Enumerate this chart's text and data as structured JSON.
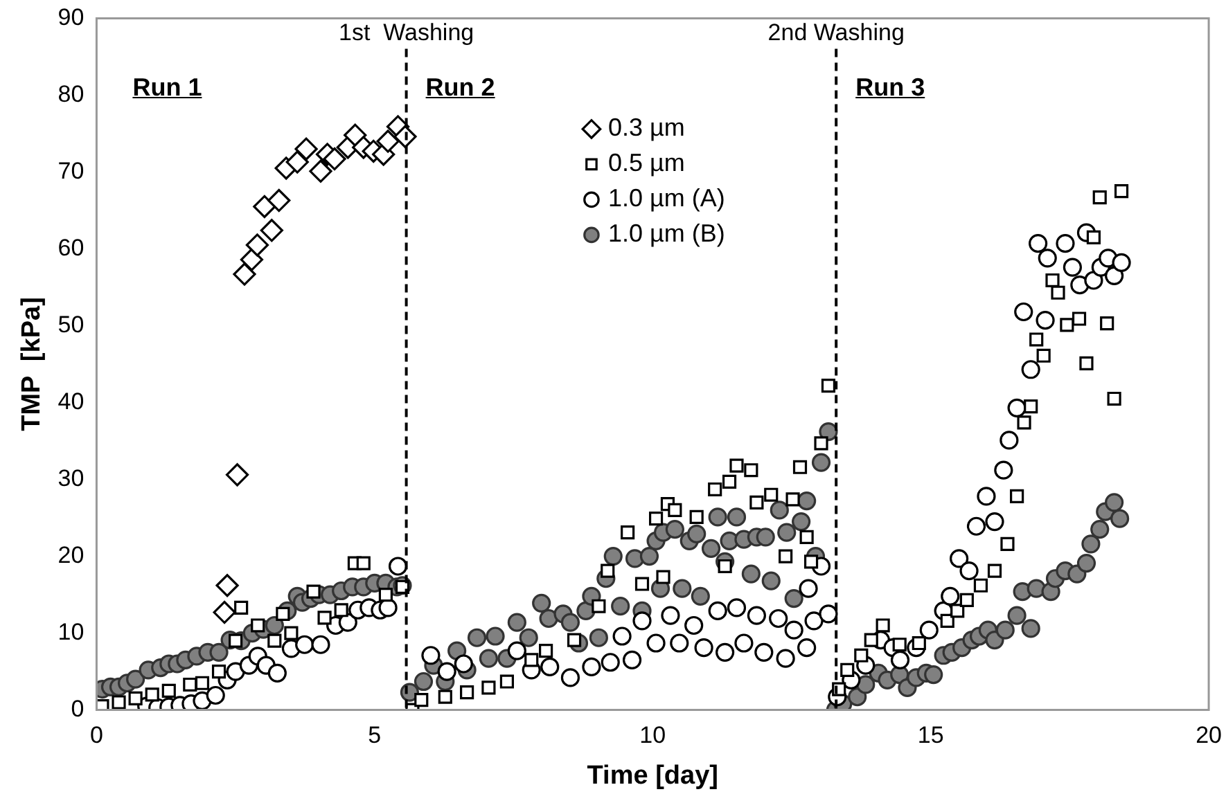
{
  "chart_data": {
    "type": "scatter",
    "xlabel": "Time [day]",
    "ylabel": "TMP  [kPa]",
    "xlim": [
      0,
      20
    ],
    "xticks": [
      0,
      5,
      10,
      15,
      20
    ],
    "ylim": [
      0,
      90
    ],
    "yticks": [
      0,
      10,
      20,
      30,
      40,
      50,
      60,
      70,
      80,
      90
    ],
    "grid": false,
    "legend": "top",
    "annotations": [
      "Run 1",
      "Run 2",
      "Run 3"
    ],
    "ref_lines": [
      {
        "axis": "x",
        "value": 5.57,
        "label": "1st  Washing",
        "line_style": "dashed",
        "color": "#000000"
      },
      {
        "axis": "x",
        "value": 13.3,
        "label": "2nd Washing",
        "line_style": "dashed",
        "color": "#000000"
      }
    ],
    "series": [
      {
        "name": "0.3 µm",
        "color": "#000000",
        "marker": "diamond",
        "x": [
          2.3,
          2.35,
          2.53,
          2.66,
          2.79,
          2.89,
          3.02,
          3.15,
          3.28,
          3.41,
          3.61,
          3.77,
          4.03,
          4.15,
          4.28,
          4.52,
          4.65,
          4.8,
          4.98,
          5.16,
          5.24,
          5.42,
          5.55
        ],
        "values": [
          12.7,
          16.2,
          30.6,
          56.7,
          58.6,
          60.5,
          65.5,
          62.4,
          66.3,
          70.5,
          71.3,
          73,
          70.1,
          72.3,
          71.7,
          73.2,
          74.8,
          73.2,
          72.7,
          72.3,
          74,
          75.9,
          74.6
        ]
      },
      {
        "name": "0.5 µm",
        "color": "#000000",
        "marker": "square",
        "x": [
          0.1,
          0.4,
          0.7,
          1,
          1.3,
          1.68,
          1.9,
          2.2,
          2.5,
          2.6,
          2.9,
          3.2,
          3.35,
          3.5,
          3.9,
          4.1,
          4.4,
          4.64,
          4.8,
          5.2,
          5.5,
          5.68,
          5.84,
          6.27,
          6.66,
          7.05,
          7.38,
          7.82,
          8.08,
          8.59,
          9.03,
          9.19,
          9.55,
          9.81,
          10.06,
          10.19,
          10.27,
          10.4,
          10.79,
          11.12,
          11.3,
          11.38,
          11.51,
          11.77,
          11.87,
          12.13,
          12.39,
          12.52,
          12.65,
          12.77,
          12.85,
          13.03,
          13.16,
          13.35,
          13.5,
          13.75,
          13.93,
          14.14,
          14.44,
          14.79,
          15.3,
          15.48,
          15.65,
          15.9,
          16.15,
          16.38,
          16.55,
          16.68,
          16.8,
          16.9,
          17.03,
          17.19,
          17.29,
          17.45,
          17.67,
          17.8,
          17.93,
          18.04,
          18.17,
          18.3,
          18.43
        ],
        "values": [
          0.5,
          1,
          1.5,
          2,
          2.5,
          3.3,
          3.5,
          5,
          9,
          13.3,
          11,
          9,
          12.5,
          10,
          15.4,
          12,
          13,
          19.1,
          19.1,
          15,
          16,
          0,
          1.3,
          1.7,
          2.3,
          2.9,
          3.7,
          6.5,
          7.7,
          9.1,
          13.5,
          18.1,
          23.1,
          16.4,
          24.9,
          17.3,
          26.8,
          26,
          25.1,
          28.7,
          18.7,
          29.7,
          31.8,
          31.2,
          27,
          28,
          20,
          27.4,
          31.6,
          22.5,
          19.3,
          34.7,
          42.2,
          2.7,
          5.2,
          7.1,
          9.1,
          11,
          8.5,
          8.7,
          11.6,
          12.9,
          14.3,
          16.2,
          18.1,
          21.6,
          27.8,
          37.4,
          39.5,
          48.2,
          46.1,
          55.9,
          54.3,
          50.1,
          50.9,
          45.1,
          61.5,
          66.7,
          50.3,
          40.5,
          67.5
        ]
      },
      {
        "name": "1.0 µm (A)",
        "color": "#000000",
        "marker": "circle",
        "x": [
          0.9,
          1.1,
          1.3,
          1.5,
          1.7,
          1.9,
          2.14,
          2.35,
          2.5,
          2.74,
          2.9,
          3.05,
          3.25,
          3.5,
          3.74,
          4.03,
          4.3,
          4.52,
          4.7,
          4.9,
          5.1,
          5.24,
          5.42,
          6.01,
          6.3,
          6.6,
          7.56,
          7.82,
          8.15,
          8.52,
          8.9,
          9.24,
          9.45,
          9.63,
          9.81,
          10.06,
          10.32,
          10.48,
          10.74,
          10.92,
          11.17,
          11.3,
          11.51,
          11.64,
          11.87,
          12,
          12.26,
          12.39,
          12.54,
          12.77,
          12.8,
          12.9,
          13.03,
          13.16,
          13.32,
          13.57,
          13.83,
          14.1,
          14.32,
          14.45,
          14.74,
          14.97,
          15.23,
          15.35,
          15.51,
          15.69,
          15.82,
          16,
          16.15,
          16.31,
          16.41,
          16.55,
          16.67,
          16.8,
          16.93,
          17.06,
          17.1,
          17.42,
          17.55,
          17.68,
          17.8,
          17.93,
          18.06,
          18.19,
          18.3,
          18.43
        ],
        "values": [
          0.5,
          0.3,
          0.4,
          0.6,
          0.8,
          1.2,
          1.9,
          3.9,
          5,
          5.8,
          7,
          5.8,
          4.8,
          8,
          8.5,
          8.5,
          11,
          11.4,
          13,
          13.3,
          13,
          13.3,
          18.7,
          7.1,
          5,
          6,
          7.7,
          5.2,
          5.6,
          4.2,
          5.6,
          6.2,
          9.6,
          6.5,
          11.6,
          8.7,
          12.3,
          8.7,
          11,
          8.1,
          12.9,
          7.5,
          13.3,
          8.7,
          12.3,
          7.5,
          11.9,
          6.7,
          10.4,
          8.1,
          15.8,
          11.6,
          18.7,
          12.5,
          1.7,
          3.9,
          5.8,
          9.1,
          8.1,
          6.5,
          8.1,
          10.4,
          12.9,
          14.8,
          19.7,
          18.1,
          23.9,
          27.8,
          24.5,
          31.2,
          35.1,
          39.3,
          51.8,
          44.3,
          60.7,
          50.7,
          58.8,
          60.7,
          57.6,
          55.3,
          62.1,
          55.9,
          57.6,
          58.8,
          56.5,
          58.2
        ]
      },
      {
        "name": "1.0 µm (B)",
        "color": "#808080",
        "marker": "circle",
        "x": [
          0.1,
          0.25,
          0.4,
          0.55,
          0.7,
          0.93,
          1.15,
          1.3,
          1.45,
          1.6,
          1.8,
          2,
          2.2,
          2.4,
          2.6,
          2.8,
          3,
          3.2,
          3.43,
          3.61,
          3.7,
          3.85,
          4,
          4.2,
          4.4,
          4.6,
          4.8,
          5,
          5.2,
          5.4,
          5.5,
          5.63,
          5.88,
          6.06,
          6.27,
          6.48,
          6.66,
          6.84,
          7.05,
          7.17,
          7.38,
          7.56,
          7.77,
          8,
          8.13,
          8.39,
          8.52,
          8.67,
          8.8,
          8.9,
          9.03,
          9.16,
          9.29,
          9.42,
          9.68,
          9.81,
          9.94,
          10.06,
          10.14,
          10.19,
          10.4,
          10.53,
          10.66,
          10.79,
          10.86,
          11.05,
          11.17,
          11.3,
          11.38,
          11.51,
          11.64,
          11.77,
          11.87,
          12.03,
          12.13,
          12.28,
          12.41,
          12.54,
          12.67,
          12.77,
          12.93,
          13.03,
          13.16,
          13.29,
          13.42,
          13.68,
          13.83,
          14.06,
          14.22,
          14.44,
          14.58,
          14.74,
          14.92,
          15.05,
          15.23,
          15.38,
          15.56,
          15.74,
          15.87,
          16.03,
          16.15,
          16.34,
          16.55,
          16.65,
          16.8,
          16.9,
          17.16,
          17.24,
          17.42,
          17.63,
          17.8,
          17.88,
          18.04,
          18.14,
          18.3,
          18.4
        ],
        "values": [
          2.7,
          3,
          3,
          3.5,
          4,
          5.2,
          5.5,
          6,
          6,
          6.5,
          7,
          7.5,
          7.5,
          9.1,
          9,
          10,
          10.5,
          11,
          12.9,
          14.8,
          14,
          14.5,
          15,
          15,
          15.5,
          16,
          16,
          16.5,
          16.5,
          16,
          16.2,
          2.3,
          3.7,
          5.8,
          3.7,
          7.7,
          5.2,
          9.4,
          6.7,
          9.6,
          6.7,
          11.4,
          9.4,
          13.9,
          11.9,
          12.5,
          11.4,
          8.7,
          12.9,
          14.8,
          9.4,
          17.1,
          20,
          13.5,
          19.7,
          12.9,
          20,
          22,
          15.8,
          23.1,
          23.5,
          15.8,
          22,
          22.9,
          14.8,
          21,
          25.1,
          19.3,
          22,
          25.1,
          22.2,
          17.7,
          22.5,
          22.5,
          16.8,
          26,
          23.1,
          14.5,
          24.5,
          27.2,
          20,
          32.2,
          36.2,
          0,
          0.8,
          1.7,
          3.3,
          4.8,
          3.9,
          4.6,
          2.9,
          4.2,
          4.8,
          4.6,
          7.1,
          7.5,
          8.1,
          9.1,
          9.6,
          10.4,
          9.1,
          10.4,
          12.3,
          15.4,
          10.6,
          15.8,
          15.4,
          17.1,
          18.1,
          17.7,
          19.1,
          21.6,
          23.5,
          25.8,
          27,
          24.9
        ]
      }
    ]
  }
}
